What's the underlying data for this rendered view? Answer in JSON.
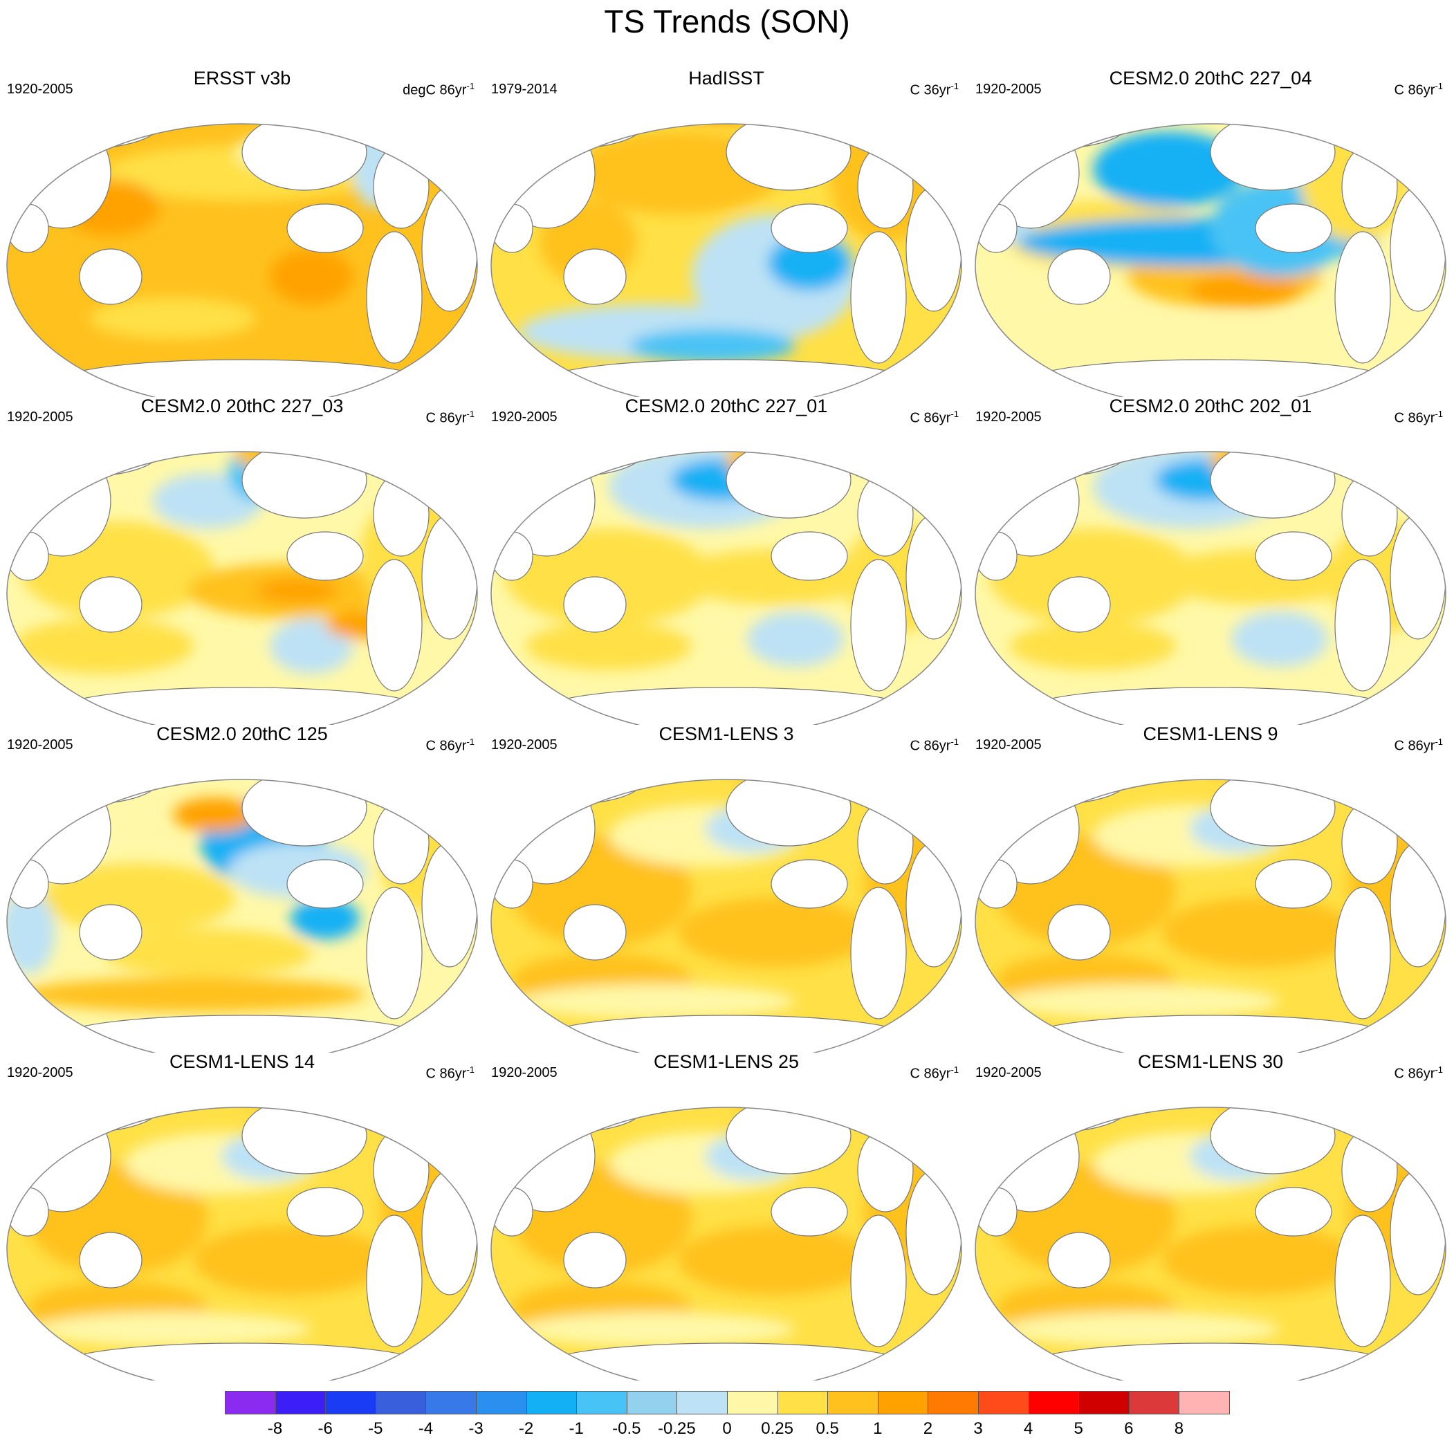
{
  "title": "TS Trends (SON)",
  "panels": [
    {
      "title": "ERSST v3b",
      "period": "1920-2005",
      "units_base": "degC 86yr",
      "units_exp": "-1",
      "pattern": "warm_strong"
    },
    {
      "title": "HadISST",
      "period": "1979-2014",
      "units_base": "C 36yr",
      "units_exp": "-1",
      "pattern": "lanina"
    },
    {
      "title": "CESM2.0 20thC 227_04",
      "period": "1920-2005",
      "units_base": "C 86yr",
      "units_exp": "-1",
      "pattern": "horseshoe"
    },
    {
      "title": "CESM2.0 20thC 227_03",
      "period": "1920-2005",
      "units_base": "C 86yr",
      "units_exp": "-1",
      "pattern": "mixed"
    },
    {
      "title": "CESM2.0 20thC 227_01",
      "period": "1920-2005",
      "units_base": "C 86yr",
      "units_exp": "-1",
      "pattern": "mixed_cool"
    },
    {
      "title": "CESM2.0 20thC 202_01",
      "period": "1920-2005",
      "units_base": "C 86yr",
      "units_exp": "-1",
      "pattern": "mixed_cool"
    },
    {
      "title": "CESM2.0 20thC 125",
      "period": "1920-2005",
      "units_base": "C 86yr",
      "units_exp": "-1",
      "pattern": "npac_cool"
    },
    {
      "title": "CESM1-LENS 3",
      "period": "1920-2005",
      "units_base": "C 86yr",
      "units_exp": "-1",
      "pattern": "warm"
    },
    {
      "title": "CESM1-LENS 9",
      "period": "1920-2005",
      "units_base": "C 86yr",
      "units_exp": "-1",
      "pattern": "warm"
    },
    {
      "title": "CESM1-LENS 14",
      "period": "1920-2005",
      "units_base": "C 86yr",
      "units_exp": "-1",
      "pattern": "warm"
    },
    {
      "title": "CESM1-LENS 25",
      "period": "1920-2005",
      "units_base": "C 86yr",
      "units_exp": "-1",
      "pattern": "warm"
    },
    {
      "title": "CESM1-LENS 30",
      "period": "1920-2005",
      "units_base": "C 86yr",
      "units_exp": "-1",
      "pattern": "warm"
    }
  ],
  "colorbar": {
    "labels": [
      "-8",
      "-6",
      "-5",
      "-4",
      "-3",
      "-2",
      "-1",
      "-0.5",
      "-0.25",
      "0",
      "0.25",
      "0.5",
      "1",
      "2",
      "3",
      "4",
      "5",
      "6",
      "8"
    ],
    "colors": [
      "#8B2BF0",
      "#3C1EF6",
      "#1A3CF5",
      "#3A5FDC",
      "#3779E8",
      "#2A90F0",
      "#14B0F5",
      "#48C3F5",
      "#93D1EE",
      "#BDE2F5",
      "#FFF8A8",
      "#FFE046",
      "#FFC11E",
      "#FFA200",
      "#FF7A00",
      "#FF4A1A",
      "#FF0000",
      "#D00000",
      "#DC3A3A",
      "#FFB3B3"
    ]
  },
  "colors": {
    "land": "#ffffff",
    "coast": "#777777",
    "outline": "#888888"
  }
}
